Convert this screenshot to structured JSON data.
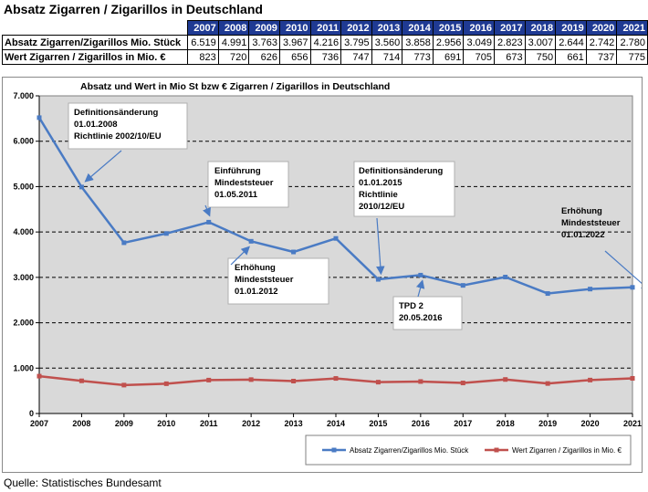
{
  "page": {
    "title": "Absatz Zigarren / Zigarillos in Deutschland",
    "source": "Quelle: Statistisches Bundesamt"
  },
  "table": {
    "years": [
      "2007",
      "2008",
      "2009",
      "2010",
      "2011",
      "2012",
      "2013",
      "2014",
      "2015",
      "2016",
      "2017",
      "2018",
      "2019",
      "2020",
      "2021"
    ],
    "rows": [
      {
        "label": "Absatz Zigarren/Zigarillos Mio. Stück",
        "values": [
          "6.519",
          "4.991",
          "3.763",
          "3.967",
          "4.216",
          "3.795",
          "3.560",
          "3.858",
          "2.956",
          "3.049",
          "2.823",
          "3.007",
          "2.644",
          "2.742",
          "2.780"
        ]
      },
      {
        "label": "Wert Zigarren / Zigarillos in Mio. €",
        "values": [
          "823",
          "720",
          "626",
          "656",
          "736",
          "747",
          "714",
          "773",
          "691",
          "705",
          "673",
          "750",
          "661",
          "737",
          "775"
        ]
      }
    ]
  },
  "chart_data": {
    "type": "line",
    "title": "Absatz  und Wert in Mio St bzw €  Zigarren / Zigarillos in Deutschland",
    "x": [
      "2007",
      "2008",
      "2009",
      "2010",
      "2011",
      "2012",
      "2013",
      "2014",
      "2015",
      "2016",
      "2017",
      "2018",
      "2019",
      "2020",
      "2021"
    ],
    "y_tick_labels": [
      "0",
      "1.000",
      "2.000",
      "3.000",
      "4.000",
      "5.000",
      "6.000",
      "7.000"
    ],
    "ylim": [
      0,
      7000
    ],
    "grid": "horizontal dashed",
    "legend_position": "bottom-right",
    "series": [
      {
        "name": "Absatz Zigarren/Zigarillos Mio. Stück",
        "color": "#4a7bc4",
        "values": [
          6519,
          4991,
          3763,
          3967,
          4216,
          3795,
          3560,
          3858,
          2956,
          3049,
          2823,
          3007,
          2644,
          2742,
          2780
        ]
      },
      {
        "name": "Wert Zigarren / Zigarillos in Mio. €",
        "color": "#c0504d",
        "values": [
          823,
          720,
          626,
          656,
          736,
          747,
          714,
          773,
          691,
          705,
          673,
          750,
          661,
          737,
          775
        ]
      }
    ],
    "annotations": [
      {
        "lines": [
          "Definitionsänderung",
          "01.01.2008",
          "Richtlinie  2002/10/EU"
        ],
        "x": "2008",
        "y": 4991
      },
      {
        "lines": [
          "Einführung",
          "Mindeststeuer",
          "01.05.2011"
        ],
        "x": "2011",
        "y": 4216
      },
      {
        "lines": [
          "Erhöhung",
          "Mindeststeuer",
          "01.01.2012"
        ],
        "x": "2012",
        "y": 3795
      },
      {
        "lines": [
          "Definitionsänderung",
          "01.01.2015",
          "Richtlinie",
          "2010/12/EU"
        ],
        "x": "2015",
        "y": 2956
      },
      {
        "lines": [
          "TPD 2",
          "20.05.2016"
        ],
        "x": "2016",
        "y": 3049
      },
      {
        "lines": [
          "Erhöhung",
          "Mindeststeuer",
          "01.01.2022"
        ],
        "x": "2022",
        "y": 2800
      }
    ],
    "colors": {
      "plot_background": "#d9d9d9",
      "grid": "#000000"
    }
  }
}
